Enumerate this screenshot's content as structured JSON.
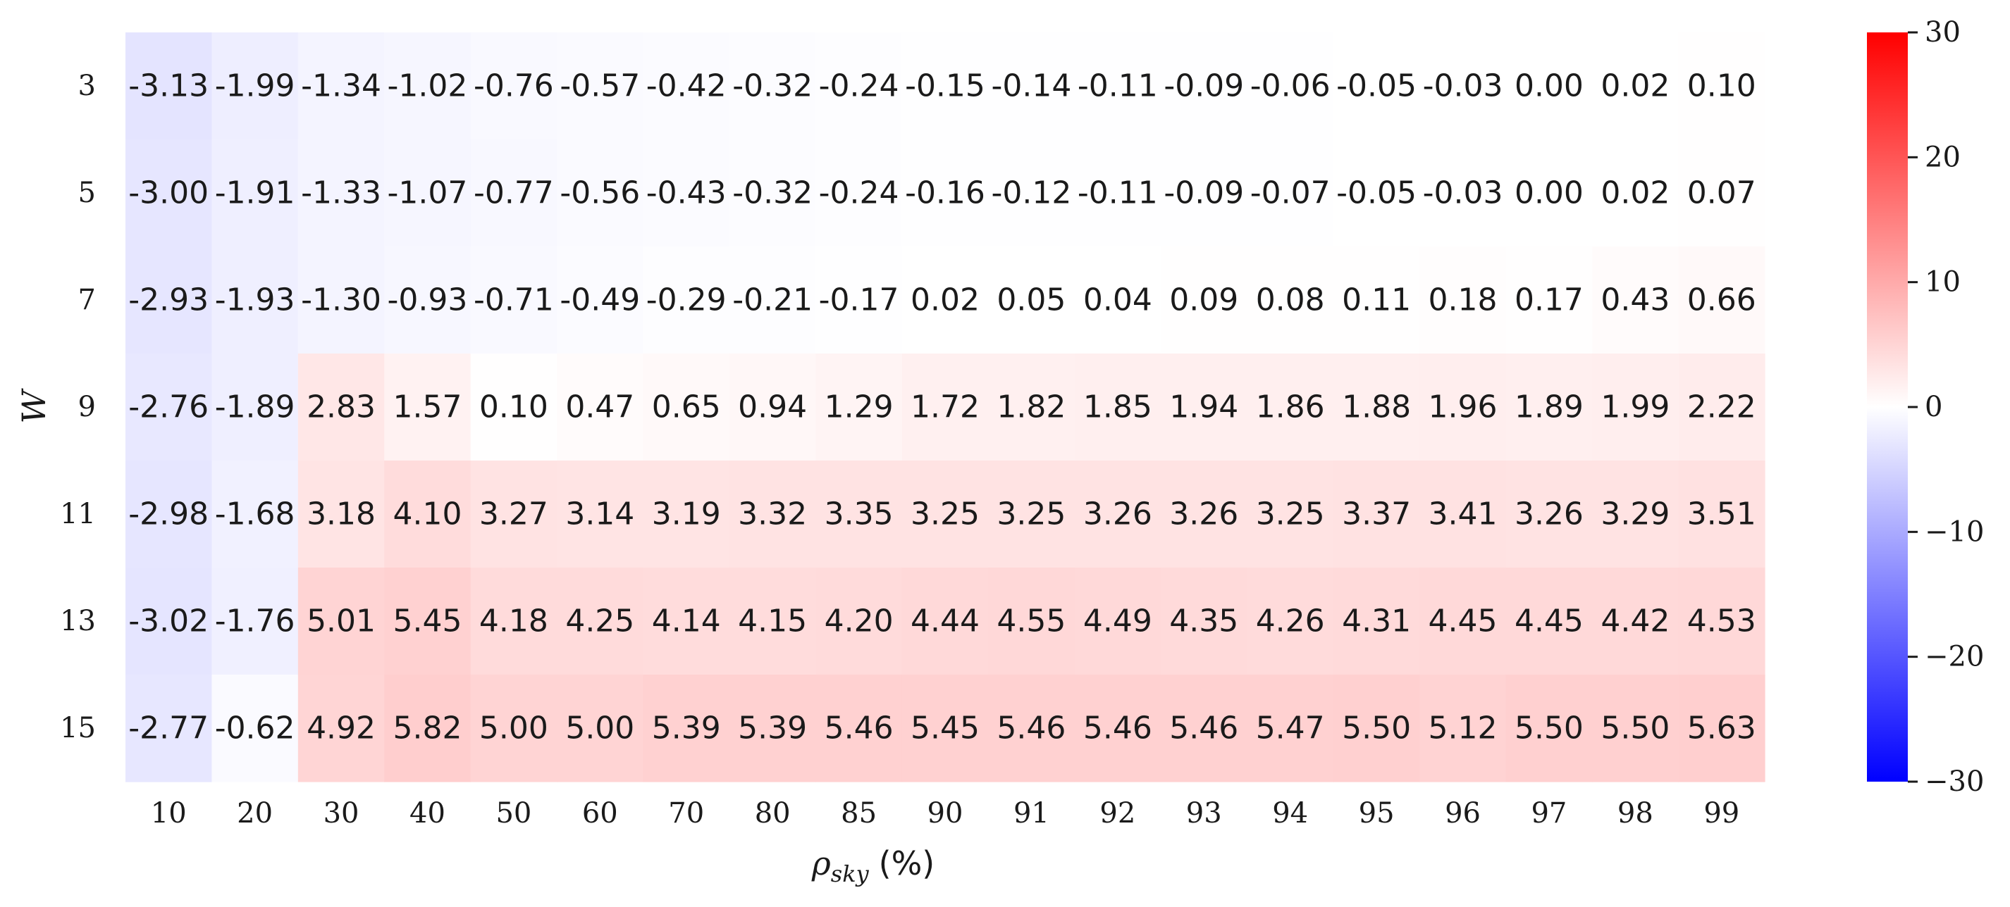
{
  "chart_data": {
    "type": "heatmap",
    "xlabel_symbol": "ρ",
    "xlabel_subscript": "sky",
    "xlabel_unit": "(%)",
    "ylabel": "W",
    "x_ticks": [
      "10",
      "20",
      "30",
      "40",
      "50",
      "60",
      "70",
      "80",
      "85",
      "90",
      "91",
      "92",
      "93",
      "94",
      "95",
      "96",
      "97",
      "98",
      "99"
    ],
    "y_ticks": [
      "3",
      "5",
      "7",
      "9",
      "11",
      "13",
      "15"
    ],
    "values": [
      [
        "-3.13",
        "-1.99",
        "-1.34",
        "-1.02",
        "-0.76",
        "-0.57",
        "-0.42",
        "-0.32",
        "-0.24",
        "-0.15",
        "-0.14",
        "-0.11",
        "-0.09",
        "-0.06",
        "-0.05",
        "-0.03",
        "0.00",
        "0.02",
        "0.10"
      ],
      [
        "-3.00",
        "-1.91",
        "-1.33",
        "-1.07",
        "-0.77",
        "-0.56",
        "-0.43",
        "-0.32",
        "-0.24",
        "-0.16",
        "-0.12",
        "-0.11",
        "-0.09",
        "-0.07",
        "-0.05",
        "-0.03",
        "0.00",
        "0.02",
        "0.07"
      ],
      [
        "-2.93",
        "-1.93",
        "-1.30",
        "-0.93",
        "-0.71",
        "-0.49",
        "-0.29",
        "-0.21",
        "-0.17",
        "0.02",
        "0.05",
        "0.04",
        "0.09",
        "0.08",
        "0.11",
        "0.18",
        "0.17",
        "0.43",
        "0.66"
      ],
      [
        "-2.76",
        "-1.89",
        "2.83",
        "1.57",
        "0.10",
        "0.47",
        "0.65",
        "0.94",
        "1.29",
        "1.72",
        "1.82",
        "1.85",
        "1.94",
        "1.86",
        "1.88",
        "1.96",
        "1.89",
        "1.99",
        "2.22"
      ],
      [
        "-2.98",
        "-1.68",
        "3.18",
        "4.10",
        "3.27",
        "3.14",
        "3.19",
        "3.32",
        "3.35",
        "3.25",
        "3.25",
        "3.26",
        "3.26",
        "3.25",
        "3.37",
        "3.41",
        "3.26",
        "3.29",
        "3.51"
      ],
      [
        "-3.02",
        "-1.76",
        "5.01",
        "5.45",
        "4.18",
        "4.25",
        "4.14",
        "4.15",
        "4.20",
        "4.44",
        "4.55",
        "4.49",
        "4.35",
        "4.26",
        "4.31",
        "4.45",
        "4.45",
        "4.42",
        "4.53"
      ],
      [
        "-2.77",
        "-0.62",
        "4.92",
        "5.82",
        "5.00",
        "5.00",
        "5.39",
        "5.39",
        "5.46",
        "5.45",
        "5.46",
        "5.46",
        "5.46",
        "5.47",
        "5.50",
        "5.12",
        "5.50",
        "5.50",
        "5.63"
      ]
    ],
    "colorbar": {
      "vmin": -30,
      "vmax": 30,
      "ticks": [
        30,
        20,
        10,
        0,
        -10,
        -20,
        -30
      ],
      "tick_labels": [
        "30",
        "20",
        "10",
        "0",
        "−10",
        "−20",
        "−30"
      ],
      "colormap": "bwr"
    },
    "grid": false,
    "legend": "colorbar right"
  }
}
